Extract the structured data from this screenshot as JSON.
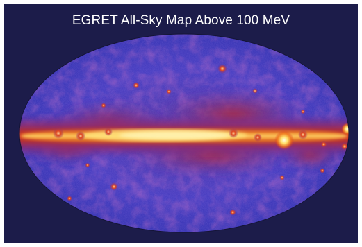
{
  "title": "EGRET All-Sky Map Above 100 MeV",
  "colors": {
    "background": "#1c1c4a",
    "sky_low": "#4a3ec2",
    "sky_mid": "#7a2a82",
    "plane_mid": "#d4321e",
    "plane_high": "#ffee8a",
    "title_text": "#ffffff"
  }
}
